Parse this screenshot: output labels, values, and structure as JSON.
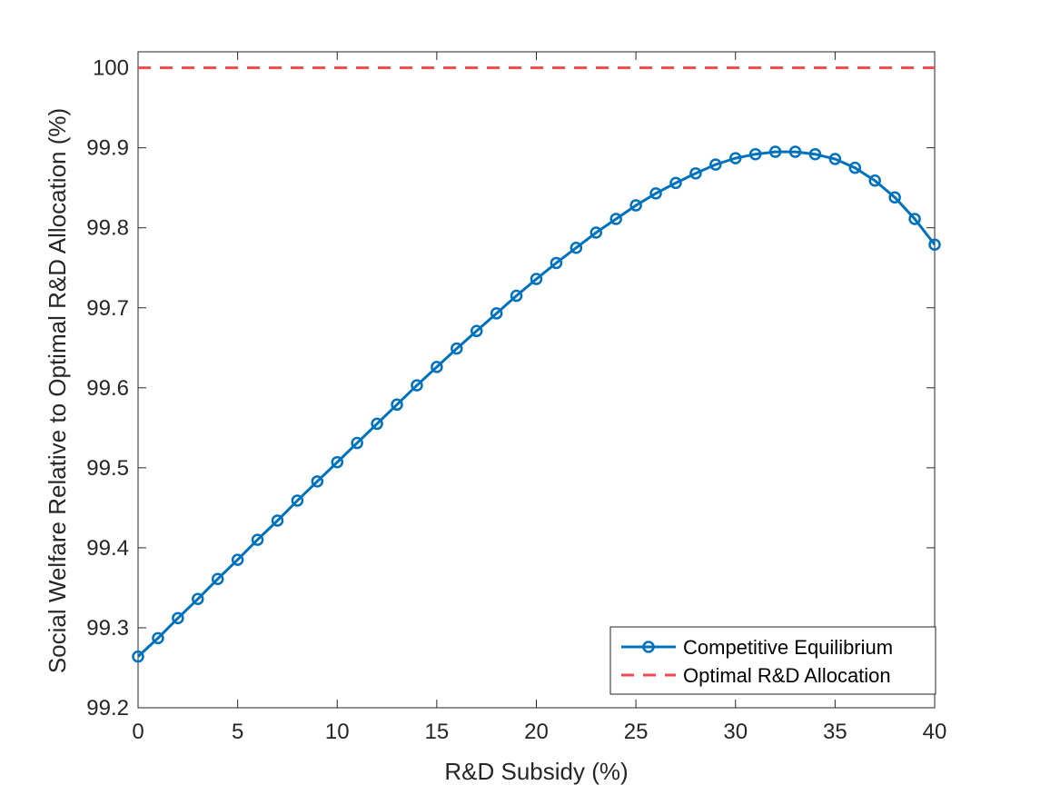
{
  "chart_data": {
    "type": "line",
    "title": "",
    "xlabel": "R&D Subsidy (%)",
    "ylabel": "Social Welfare Relative to Optimal R&D Allocation (%)",
    "xlim": [
      0,
      40
    ],
    "ylim": [
      99.2,
      100.02
    ],
    "x_ticks": [
      0,
      5,
      10,
      15,
      20,
      25,
      30,
      35,
      40
    ],
    "y_ticks": [
      99.2,
      99.3,
      99.4,
      99.5,
      99.6,
      99.7,
      99.8,
      99.9,
      100
    ],
    "x_tick_labels": [
      "0",
      "5",
      "10",
      "15",
      "20",
      "25",
      "30",
      "35",
      "40"
    ],
    "y_tick_labels": [
      "99.2",
      "99.3",
      "99.4",
      "99.5",
      "99.6",
      "99.7",
      "99.8",
      "99.9",
      "100"
    ],
    "grid": false,
    "legend_position": "bottom-right",
    "series": [
      {
        "name": "Competitive Equilibrium",
        "color": "#0072BD",
        "style": "solid",
        "marker": "circle",
        "x": [
          0,
          1,
          2,
          3,
          4,
          5,
          6,
          7,
          8,
          9,
          10,
          11,
          12,
          13,
          14,
          15,
          16,
          17,
          18,
          19,
          20,
          21,
          22,
          23,
          24,
          25,
          26,
          27,
          28,
          29,
          30,
          31,
          32,
          33,
          34,
          35,
          36,
          37,
          38,
          39,
          40
        ],
        "values": [
          99.264,
          99.287,
          99.312,
          99.336,
          99.361,
          99.385,
          99.41,
          99.434,
          99.459,
          99.483,
          99.507,
          99.531,
          99.555,
          99.579,
          99.603,
          99.626,
          99.649,
          99.671,
          99.693,
          99.715,
          99.736,
          99.756,
          99.775,
          99.794,
          99.811,
          99.828,
          99.843,
          99.856,
          99.868,
          99.879,
          99.887,
          99.892,
          99.895,
          99.895,
          99.892,
          99.886,
          99.875,
          99.859,
          99.838,
          99.811,
          99.779
        ]
      },
      {
        "name": "Optimal R&D Allocation",
        "color": "#F0494F",
        "style": "dashed",
        "marker": "none",
        "x": [
          0,
          40
        ],
        "values": [
          100,
          100
        ]
      }
    ]
  }
}
